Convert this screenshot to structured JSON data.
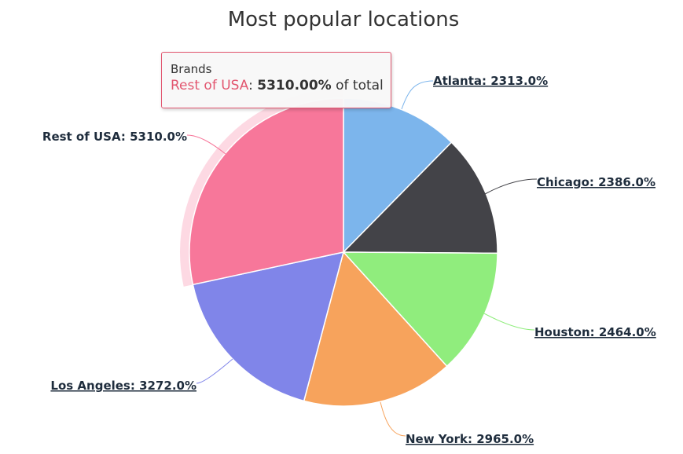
{
  "chart_data": {
    "type": "pie",
    "title": "Most popular locations",
    "series_name": "Brands",
    "value_suffix": "%",
    "categories": [
      "Atlanta",
      "Chicago",
      "Houston",
      "New York",
      "Los Angeles",
      "Rest of USA"
    ],
    "values": [
      2313.0,
      2386.0,
      2464.0,
      2965.0,
      3272.0,
      5310.0
    ],
    "colors": [
      "#7cb5ec",
      "#434348",
      "#90ed7d",
      "#f7a35c",
      "#8085e9",
      "#f7779a"
    ],
    "label_texts": [
      "Atlanta: 2313.0%",
      "Chicago: 2386.0%",
      "Houston: 2464.0%",
      "New York: 2965.0%",
      "Los Angeles: 3272.0%",
      "Rest of USA: 5310.0%"
    ],
    "linked": [
      true,
      true,
      true,
      true,
      true,
      false
    ],
    "hovered": "Rest of USA",
    "legend": "none"
  },
  "tooltip": {
    "header": "Brands",
    "name": "Rest of USA",
    "sep": ": ",
    "value": "5310.00%",
    "suffix": " of total"
  }
}
